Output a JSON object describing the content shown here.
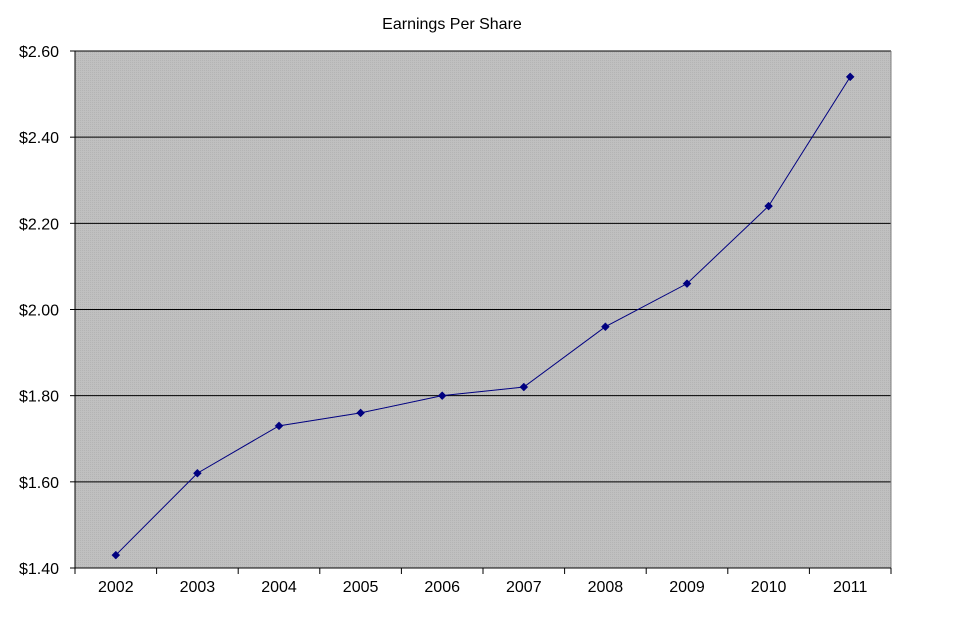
{
  "chart_data": {
    "type": "line",
    "title": "Earnings Per Share",
    "xlabel": "",
    "ylabel": "",
    "categories": [
      "2002",
      "2003",
      "2004",
      "2005",
      "2006",
      "2007",
      "2008",
      "2009",
      "2010",
      "2011"
    ],
    "series": [
      {
        "values": [
          1.43,
          1.62,
          1.73,
          1.76,
          1.8,
          1.82,
          1.96,
          2.06,
          2.24,
          2.54
        ]
      }
    ],
    "ylim": [
      1.4,
      2.6
    ],
    "yticks": [
      1.4,
      1.6,
      1.8,
      2.0,
      2.2,
      2.4,
      2.6
    ],
    "ytick_labels": [
      "$1.40",
      "$1.60",
      "$1.80",
      "$2.00",
      "$2.20",
      "$2.40",
      "$2.60"
    ],
    "grid": "horizontal",
    "legend": "none",
    "colors": {
      "plot_background": "#c0c0c0",
      "line": "#000080",
      "marker": "#000080",
      "gridline": "#000000"
    }
  }
}
